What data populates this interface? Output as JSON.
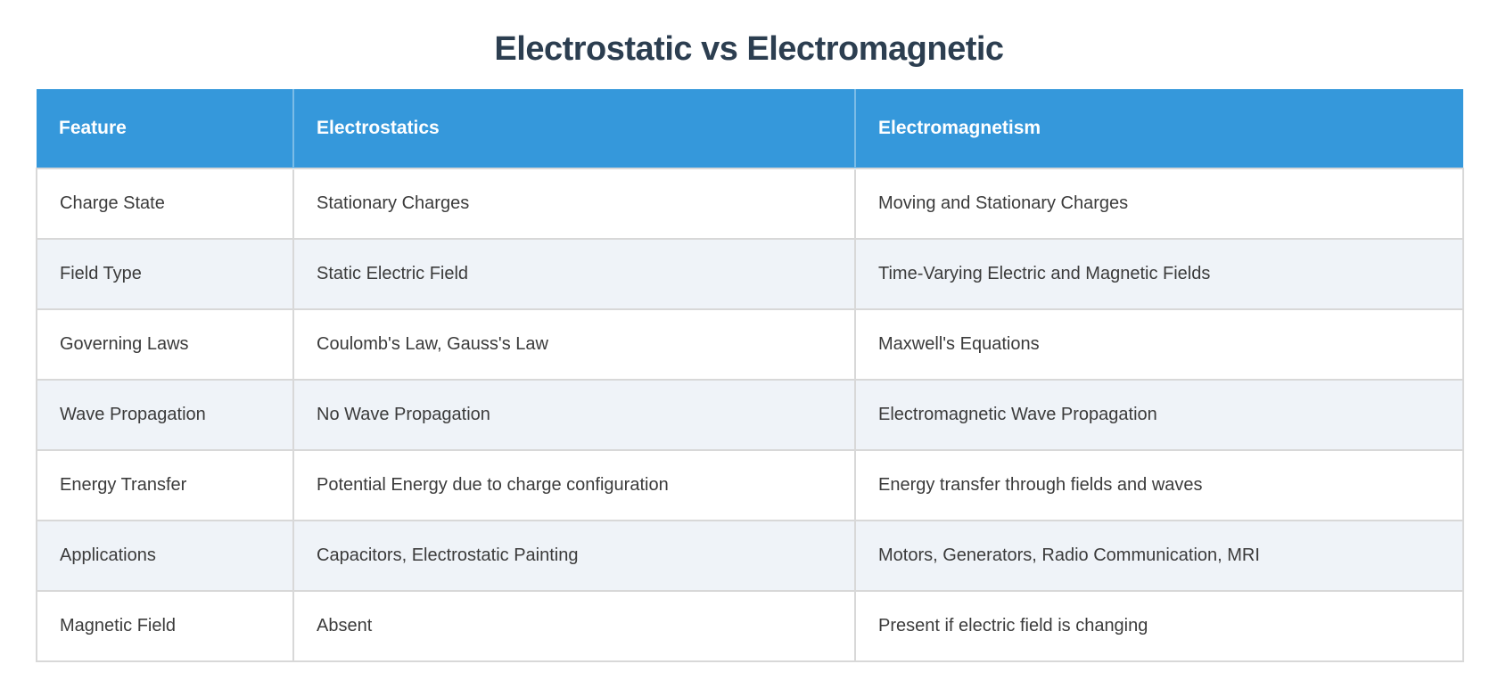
{
  "chart_data": {
    "type": "table",
    "title": "Electrostatic vs Electromagnetic",
    "columns": [
      "Feature",
      "Electrostatics",
      "Electromagnetism"
    ],
    "rows": [
      [
        "Charge State",
        "Stationary Charges",
        "Moving and Stationary Charges"
      ],
      [
        "Field Type",
        "Static Electric Field",
        "Time-Varying Electric and Magnetic Fields"
      ],
      [
        "Governing Laws",
        "Coulomb's Law, Gauss's Law",
        "Maxwell's Equations"
      ],
      [
        "Wave Propagation",
        "No Wave Propagation",
        "Electromagnetic Wave Propagation"
      ],
      [
        "Energy Transfer",
        "Potential Energy due to charge configuration",
        "Energy transfer through fields and waves"
      ],
      [
        "Applications",
        "Capacitors, Electrostatic Painting",
        "Motors, Generators, Radio Communication, MRI"
      ],
      [
        "Magnetic Field",
        "Absent",
        "Present if electric field is changing"
      ]
    ],
    "layout": {
      "legend": "none",
      "grid": "cell-borders",
      "header_position": "top",
      "row_striping": "alternate"
    },
    "colors": {
      "header_bg": "#3598db",
      "header_text": "#ffffff",
      "row_bg": "#ffffff",
      "row_alt_bg": "#eff3f8",
      "body_text": "#3b3b3b",
      "title_text": "#2c3e50",
      "cell_border": "#d8d8d8"
    }
  }
}
